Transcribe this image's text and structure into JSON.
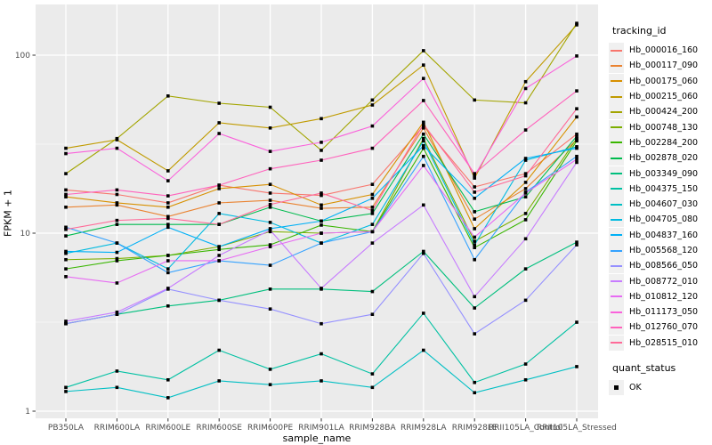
{
  "figure": {
    "y_axis_title": "FPKM + 1",
    "x_axis_title": "sample_name"
  },
  "legend": {
    "tracking_title": "tracking_id",
    "quant_title": "quant_status",
    "quant_items": [
      {
        "label": "OK"
      }
    ]
  },
  "chart_data": {
    "type": "line",
    "title": "",
    "xlabel": "sample_name",
    "ylabel": "FPKM + 1",
    "y_scale": "log10",
    "ylim": [
      0.91,
      193
    ],
    "y_major_ticks": [
      1,
      10,
      100
    ],
    "y_minor_gridlines": [
      3.162,
      31.62
    ],
    "grid": "white major and minor gridlines on grey panel",
    "panel_color": "#EBEBEB",
    "gridline_color": "#FFFFFF",
    "point_shape": "filled-square",
    "point_color": "#000000",
    "legend_position": "right",
    "legend_title": "tracking_id",
    "quant_status": {
      "title": "quant_status",
      "values": [
        "OK"
      ]
    },
    "categories": [
      "PB350LA",
      "RRIM600LA",
      "RRIM600LE",
      "RRIM600SE",
      "RRIM600PE",
      "RRIM901LA",
      "RRIM928BA",
      "RRIM928LA",
      "RRIM928LE",
      "RRII105LA_Control",
      "RRII105LA_Stressed"
    ],
    "series": [
      {
        "name": "Hb_000016_160",
        "color": "#F8766D",
        "values": [
          17.5,
          16.5,
          14.8,
          18.6,
          16.8,
          16.3,
          18.8,
          40,
          18.2,
          21.6,
          36
        ]
      },
      {
        "name": "Hb_000117_090",
        "color": "#EA8331",
        "values": [
          14,
          14.4,
          12.4,
          14.8,
          15.3,
          13.8,
          14,
          39,
          12,
          17.8,
          33.5
        ]
      },
      {
        "name": "Hb_000175_060",
        "color": "#D89000",
        "values": [
          16,
          14.8,
          14,
          17.8,
          18.8,
          14.4,
          16.5,
          42,
          10.6,
          19.3,
          45
        ]
      },
      {
        "name": "Hb_000215_060",
        "color": "#C09B00",
        "values": [
          30,
          33.5,
          22.4,
          41.7,
          39,
          44,
          52.5,
          88,
          20.4,
          71,
          148
        ]
      },
      {
        "name": "Hb_000424_200",
        "color": "#A3A500",
        "values": [
          21.6,
          34,
          59,
          53.7,
          51,
          29.2,
          56,
          106,
          56,
          54,
          151
        ]
      },
      {
        "name": "Hb_000748_130",
        "color": "#7CAE00",
        "values": [
          7.1,
          7.2,
          7.5,
          8.4,
          10.2,
          10,
          10.2,
          34,
          9,
          12.9,
          34
        ]
      },
      {
        "name": "Hb_002284_200",
        "color": "#39B600",
        "values": [
          6.3,
          7.0,
          7.5,
          8.1,
          8.6,
          11.1,
          10.2,
          30,
          8.3,
          11.9,
          33
        ]
      },
      {
        "name": "Hb_002878_020",
        "color": "#00BB4E",
        "values": [
          9.65,
          11.2,
          11.2,
          11.2,
          14,
          11.7,
          12.9,
          36,
          13.2,
          16,
          35
        ]
      },
      {
        "name": "Hb_003349_090",
        "color": "#00BF7D",
        "values": [
          3.1,
          3.5,
          3.9,
          4.2,
          4.85,
          4.85,
          4.7,
          7.9,
          3.8,
          6.3,
          8.9
        ]
      },
      {
        "name": "Hb_004375_150",
        "color": "#00C1A3",
        "values": [
          1.36,
          1.68,
          1.5,
          2.2,
          1.72,
          2.1,
          1.62,
          3.55,
          1.45,
          1.84,
          3.16
        ]
      },
      {
        "name": "Hb_004607_030",
        "color": "#00BFC4",
        "values": [
          1.29,
          1.36,
          1.19,
          1.48,
          1.41,
          1.48,
          1.36,
          2.2,
          1.27,
          1.5,
          1.78
        ]
      },
      {
        "name": "Hb_004705_080",
        "color": "#00BAE0",
        "values": [
          7.7,
          8.8,
          6.3,
          12.9,
          11.5,
          8.8,
          11.2,
          33,
          8.6,
          25.7,
          30.6
        ]
      },
      {
        "name": "Hb_004837_160",
        "color": "#00B0F6",
        "values": [
          7.9,
          7.8,
          10.8,
          8.4,
          10.6,
          11.7,
          15.7,
          31,
          15.7,
          26.3,
          30
        ]
      },
      {
        "name": "Hb_005568_120",
        "color": "#35A2FF",
        "values": [
          10.8,
          8.8,
          6.0,
          7.0,
          6.6,
          8.8,
          10.2,
          27,
          7.1,
          17,
          27
        ]
      },
      {
        "name": "Hb_008566_050",
        "color": "#9590FF",
        "values": [
          3.1,
          3.5,
          4.85,
          4.2,
          3.75,
          3.1,
          3.5,
          7.7,
          2.72,
          4.2,
          8.6
        ]
      },
      {
        "name": "Hb_008772_010",
        "color": "#C77CFF",
        "values": [
          3.2,
          3.6,
          4.9,
          7.5,
          10.4,
          4.9,
          8.8,
          14.4,
          4.4,
          9.3,
          25
        ]
      },
      {
        "name": "Hb_010812_120",
        "color": "#E76BF3",
        "values": [
          5.7,
          5.25,
          7.0,
          7.0,
          8.4,
          10,
          10.2,
          24,
          9.5,
          16.8,
          26
        ]
      },
      {
        "name": "Hb_011173_050",
        "color": "#FA62DB",
        "values": [
          28,
          30,
          19.7,
          36.3,
          28.8,
          32.4,
          40,
          74,
          21,
          65,
          99
        ]
      },
      {
        "name": "Hb_012760_070",
        "color": "#FF62BC",
        "values": [
          16.5,
          17.5,
          16.2,
          18.6,
          23,
          25.7,
          30,
          55.6,
          21.6,
          38,
          63
        ]
      },
      {
        "name": "Hb_028515_010",
        "color": "#FF6A98",
        "values": [
          10.5,
          11.8,
          12.1,
          11.2,
          14.5,
          16.8,
          13.4,
          41,
          17,
          21,
          50
        ]
      }
    ]
  }
}
